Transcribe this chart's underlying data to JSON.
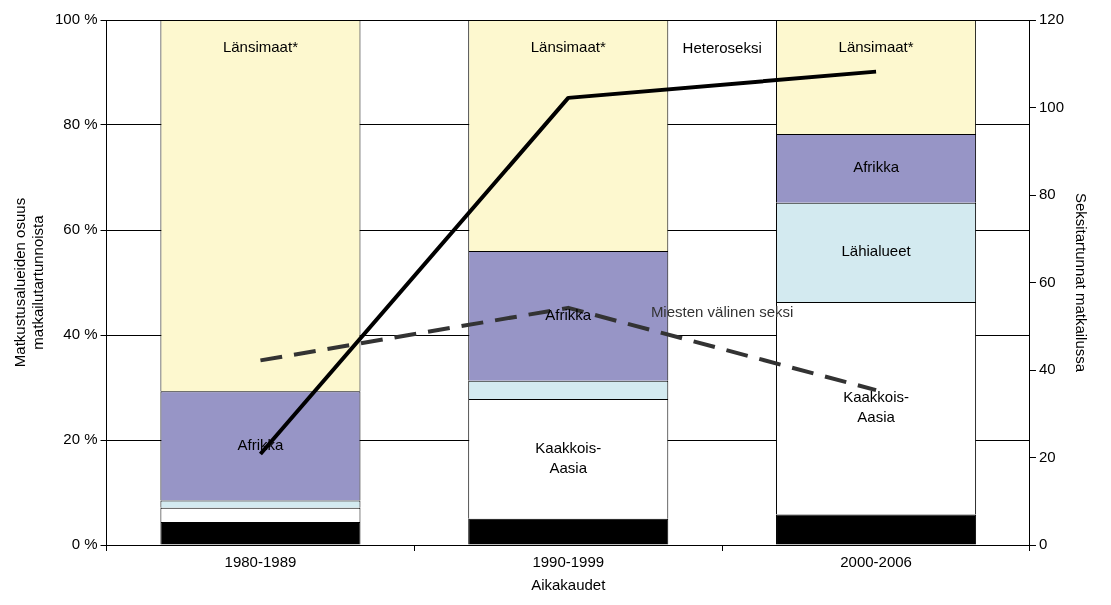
{
  "chart_data": {
    "type": "bar",
    "stacked": true,
    "categories": [
      "1980-1989",
      "1990-1999",
      "2000-2006"
    ],
    "series": [
      {
        "color": "#000000",
        "values": [
          4.4,
          5.0,
          5.8
        ]
      },
      {
        "name": "Kaakkois-Aasia",
        "color": "#ffffff",
        "values": [
          2.7,
          22.8,
          40.5
        ]
      },
      {
        "name": "Lähialueet",
        "color": "#d3eaf0",
        "values": [
          1.4,
          3.5,
          18.9
        ]
      },
      {
        "name": "Afrikka",
        "color": "#9795c6",
        "values": [
          20.8,
          24.7,
          13.1
        ]
      },
      {
        "name": "Länsimaat*",
        "color": "#fdf8cf",
        "values": [
          70.7,
          44.0,
          21.7
        ]
      },
      {
        "name": "Heteroseksi",
        "type": "line",
        "axis": "y2",
        "color": "#000000",
        "line_style": "solid",
        "values": [
          20.8,
          102.2,
          108.2
        ]
      },
      {
        "name": "Miesten välinen seksi",
        "type": "line",
        "axis": "y2",
        "color": "#333333",
        "line_style": "dashed",
        "values": [
          42.2,
          54.2,
          35.4
        ]
      }
    ],
    "xlabel": "Aikakaudet",
    "ylabel": "Matkustusalueiden osuus matkailutartunnoista",
    "y2label": "Seksitartunnat matkailussa",
    "ylim": [
      0,
      100
    ],
    "yticks": [
      {
        "value": 0,
        "label": "0 %"
      },
      {
        "value": 20,
        "label": "20 %"
      },
      {
        "value": 40,
        "label": "40 %"
      },
      {
        "value": 60,
        "label": "60 %"
      },
      {
        "value": 80,
        "label": "80 %"
      },
      {
        "value": 100,
        "label": "100 %"
      }
    ],
    "y2lim": [
      0,
      120
    ],
    "y2ticks": [
      0,
      20,
      40,
      60,
      80,
      100,
      120
    ],
    "grid": "y",
    "legend": false,
    "marker": "none"
  }
}
